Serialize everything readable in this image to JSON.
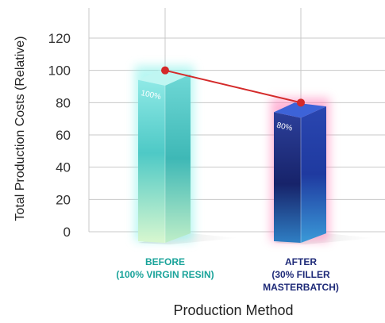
{
  "chart_data": {
    "type": "bar",
    "categories": [
      "BEFORE\n(100% VIRGIN RESIN)",
      "AFTER\n(30% FILLER\nMASTERBATCH)"
    ],
    "values": [
      100,
      80
    ],
    "data_labels": [
      "100%",
      "80%"
    ],
    "xlabel": "Production Method",
    "ylabel": "Total Production Costs (Relative)",
    "ylim": [
      0,
      120
    ],
    "yticks": [
      "0",
      "20",
      "40",
      "60",
      "80",
      "100",
      "120"
    ],
    "grid": true,
    "trend_line": true,
    "colors": {
      "before_bar_top": "#9ff0ea",
      "before_bar_mid": "#58d2cc",
      "before_bar_bottom": "#d4f6d2",
      "after_bar_top": "#3a58c8",
      "after_bar_mid": "#1b2d7a",
      "after_bar_bottom": "#2a88c6",
      "after_glow": "#ff7ab6",
      "before_glow": "#7ff0e8",
      "before_label": "#1aa39a",
      "after_label": "#1e2a78",
      "trend": "#d42a2a",
      "grid": "#c8c8c8",
      "axis_text": "#333333"
    }
  }
}
